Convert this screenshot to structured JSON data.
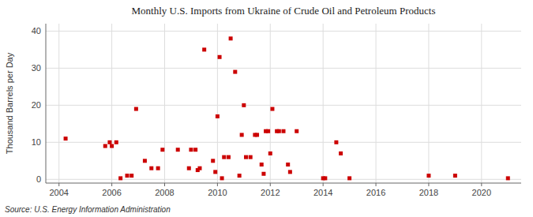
{
  "chart_data": {
    "type": "scatter",
    "title": "Monthly U.S. Imports from Ukraine of Crude Oil and Petroleum Products",
    "y_label": "Thousand Barrels per Day",
    "source": "Source: U.S. Energy Information Administration",
    "color": "#cc0000",
    "grid": true,
    "xlim": [
      2003.5,
      2021.5
    ],
    "ylim": [
      -1,
      42
    ],
    "xticks": [
      2004,
      2006,
      2008,
      2010,
      2012,
      2014,
      2016,
      2018,
      2020
    ],
    "yticks": [
      0,
      10,
      20,
      30,
      40
    ],
    "x": [
      2004.25,
      2005.75,
      2005.92,
      2006.0,
      2006.17,
      2006.33,
      2006.58,
      2006.75,
      2006.92,
      2007.25,
      2007.5,
      2007.75,
      2007.92,
      2008.5,
      2008.92,
      2009.0,
      2009.17,
      2009.25,
      2009.33,
      2009.5,
      2009.83,
      2009.92,
      2010.0,
      2010.08,
      2010.17,
      2010.25,
      2010.42,
      2010.5,
      2010.67,
      2010.83,
      2010.92,
      2011.0,
      2011.08,
      2011.25,
      2011.42,
      2011.5,
      2011.67,
      2011.75,
      2011.83,
      2011.92,
      2012.0,
      2012.08,
      2012.25,
      2012.33,
      2012.5,
      2012.67,
      2012.75,
      2013.0,
      2014.0,
      2014.08,
      2014.5,
      2014.67,
      2015.0,
      2018.0,
      2019.0,
      2021.0
    ],
    "values": [
      11,
      9,
      10,
      9,
      10,
      0.3,
      1,
      1,
      19,
      5,
      3,
      3,
      8,
      8,
      3,
      8,
      8,
      2.5,
      3,
      35,
      5,
      2,
      17,
      33,
      0.3,
      6,
      6,
      38,
      29,
      1,
      12,
      20,
      6,
      6,
      12,
      12,
      4,
      1.5,
      13,
      13,
      7,
      19,
      13,
      13,
      13,
      4,
      2,
      13,
      0.3,
      0.3,
      10,
      7,
      0.3,
      1,
      1,
      0.3
    ]
  }
}
